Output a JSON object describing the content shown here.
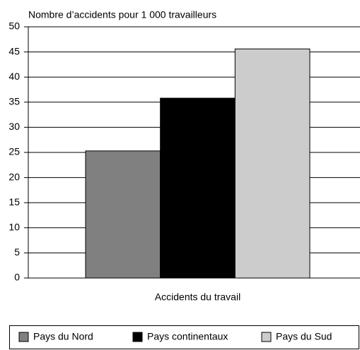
{
  "chart_data": {
    "type": "bar",
    "title": "Nombre d’accidents pour 1 000 travailleurs",
    "categories": [
      "Accidents du travail"
    ],
    "series": [
      {
        "name": "Pays du Nord",
        "color": "#808080",
        "values": [
          25.3
        ]
      },
      {
        "name": "Pays continentaux",
        "color": "#000000",
        "values": [
          35.8
        ]
      },
      {
        "name": "Pays du Sud",
        "color": "#cccccc",
        "values": [
          45.6
        ]
      }
    ],
    "ylim": [
      0,
      50
    ],
    "yticks": [
      0,
      5,
      10,
      15,
      20,
      25,
      30,
      35,
      40,
      45,
      50
    ],
    "grid": true,
    "legend": "bottom"
  }
}
